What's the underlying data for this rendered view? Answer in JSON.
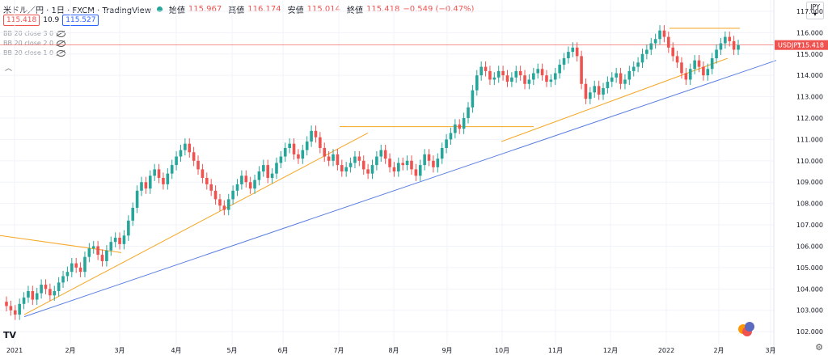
{
  "header": {
    "symbol": "米ドル／円 · 1日 · FXCM · TradingView",
    "open_label": "始値",
    "open_value": "115.967",
    "high_label": "高値",
    "high_value": "116.174",
    "low_label": "安値",
    "low_value": "115.014",
    "close_label": "終値",
    "close_value": "115.418",
    "change_value": "−0.549 (−0.47%)",
    "bid": "115.418",
    "spread": "10.9",
    "ask": "115.527"
  },
  "indicators": [
    "BB 20 close 3 0",
    "BB 20 close 2 0",
    "BB 20 close 1 0"
  ],
  "currency": "JPY",
  "price_tag": {
    "symbol": "USDJPY",
    "price": "115.418"
  },
  "chart_data": {
    "type": "candlestick",
    "y_ticks": [
      "117.000",
      "116.000",
      "115.000",
      "114.000",
      "113.000",
      "112.000",
      "111.000",
      "110.000",
      "109.000",
      "108.000",
      "107.000",
      "106.000",
      "105.000",
      "104.000",
      "103.000",
      "102.000"
    ],
    "x_ticks": [
      "2021",
      "2月",
      "3月",
      "4月",
      "5月",
      "6月",
      "7月",
      "8月",
      "9月",
      "10月",
      "11月",
      "12月",
      "2022",
      "2月",
      "3月"
    ],
    "ylim": [
      101.4,
      117.3
    ],
    "closes": [
      103.2,
      103.0,
      102.8,
      103.3,
      103.6,
      103.9,
      103.5,
      103.8,
      104.2,
      104.0,
      103.7,
      103.9,
      104.3,
      104.6,
      104.8,
      105.2,
      105.0,
      104.8,
      105.5,
      105.9,
      106.0,
      105.6,
      105.3,
      105.8,
      106.2,
      106.4,
      106.1,
      106.5,
      107.2,
      107.8,
      108.6,
      109.0,
      108.7,
      109.3,
      109.6,
      109.2,
      108.9,
      109.4,
      109.8,
      110.2,
      110.5,
      110.8,
      110.4,
      110.0,
      109.6,
      109.2,
      108.9,
      108.6,
      108.2,
      107.9,
      107.7,
      108.2,
      108.6,
      108.9,
      109.3,
      109.0,
      108.7,
      109.1,
      109.5,
      109.8,
      109.2,
      109.4,
      109.9,
      110.2,
      110.6,
      110.8,
      110.3,
      110.1,
      110.5,
      110.9,
      111.4,
      111.1,
      110.6,
      110.2,
      110.0,
      110.3,
      109.8,
      109.5,
      109.7,
      109.9,
      110.2,
      110.0,
      109.6,
      109.4,
      109.8,
      110.2,
      110.5,
      110.1,
      109.7,
      109.5,
      109.9,
      109.8,
      110.0,
      109.6,
      109.3,
      109.8,
      110.3,
      110.0,
      109.7,
      110.1,
      110.6,
      111.0,
      111.3,
      111.7,
      111.5,
      112.0,
      112.5,
      113.3,
      114.0,
      114.4,
      114.2,
      113.8,
      113.9,
      114.2,
      114.0,
      113.7,
      113.9,
      114.2,
      114.0,
      113.6,
      113.8,
      114.1,
      114.3,
      114.0,
      113.7,
      113.8,
      114.1,
      114.5,
      114.8,
      115.1,
      115.3,
      114.9,
      113.6,
      112.9,
      113.2,
      113.5,
      113.1,
      113.4,
      113.7,
      113.9,
      114.1,
      113.6,
      113.8,
      114.2,
      114.4,
      114.6,
      115.0,
      115.2,
      115.5,
      115.7,
      116.1,
      115.8,
      115.3,
      114.9,
      114.6,
      114.1,
      113.8,
      114.3,
      114.7,
      114.4,
      114.0,
      114.3,
      114.8,
      115.2,
      115.5,
      115.8,
      115.6,
      115.2,
      115.418
    ]
  }
}
